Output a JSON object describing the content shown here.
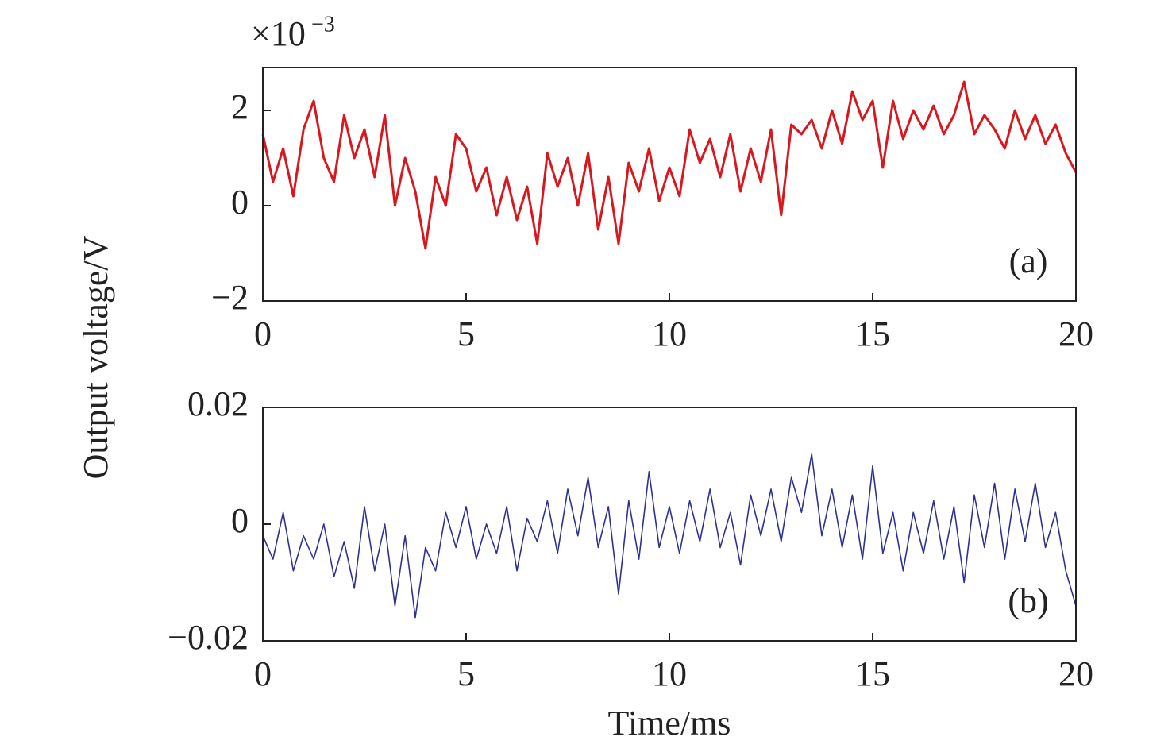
{
  "ylabel": "Output voltage/V",
  "chart_data": [
    {
      "type": "line",
      "panel_label": "(a)",
      "y_multiplier": {
        "base": "×10",
        "exponent": "−3"
      },
      "color": "#d7191f",
      "xlim": [
        0,
        20
      ],
      "xticks": [
        0,
        5,
        10,
        15,
        20
      ],
      "ylim": [
        -2,
        2.9
      ],
      "yticks": [
        {
          "value": -2,
          "label": "−2"
        },
        0,
        2
      ],
      "x": [
        0,
        0.25,
        0.5,
        0.75,
        1,
        1.25,
        1.5,
        1.75,
        2,
        2.25,
        2.5,
        2.75,
        3,
        3.25,
        3.5,
        3.75,
        4,
        4.25,
        4.5,
        4.75,
        5,
        5.25,
        5.5,
        5.75,
        6,
        6.25,
        6.5,
        6.75,
        7,
        7.25,
        7.5,
        7.75,
        8,
        8.25,
        8.5,
        8.75,
        9,
        9.25,
        9.5,
        9.75,
        10,
        10.25,
        10.5,
        10.75,
        11,
        11.25,
        11.5,
        11.75,
        12,
        12.25,
        12.5,
        12.75,
        13,
        13.25,
        13.5,
        13.75,
        14,
        14.25,
        14.5,
        14.75,
        15,
        15.25,
        15.5,
        15.75,
        16,
        16.25,
        16.5,
        16.75,
        17,
        17.25,
        17.5,
        17.75,
        18,
        18.25,
        18.5,
        18.75,
        19,
        19.25,
        19.5,
        19.75,
        20
      ],
      "values": [
        1.5,
        0.5,
        1.2,
        0.2,
        1.6,
        2.2,
        1.0,
        0.5,
        1.9,
        1.0,
        1.6,
        0.6,
        1.9,
        0.0,
        1.0,
        0.3,
        -0.9,
        0.6,
        0.0,
        1.5,
        1.2,
        0.3,
        0.8,
        -0.2,
        0.6,
        -0.3,
        0.4,
        -0.8,
        1.1,
        0.4,
        1.0,
        0.0,
        1.1,
        -0.5,
        0.6,
        -0.8,
        0.9,
        0.3,
        1.2,
        0.1,
        0.8,
        0.2,
        1.6,
        0.9,
        1.4,
        0.6,
        1.5,
        0.3,
        1.2,
        0.5,
        1.6,
        -0.2,
        1.7,
        1.5,
        1.8,
        1.2,
        2.0,
        1.3,
        2.4,
        1.8,
        2.2,
        0.8,
        2.2,
        1.4,
        2.0,
        1.6,
        2.1,
        1.5,
        1.9,
        2.6,
        1.5,
        1.9,
        1.6,
        1.2,
        2.0,
        1.4,
        1.9,
        1.3,
        1.7,
        1.1,
        0.7
      ]
    },
    {
      "type": "line",
      "panel_label": "(b)",
      "xlabel": "Time/ms",
      "color": "#2e3192",
      "xlim": [
        0,
        20
      ],
      "xticks": [
        0,
        5,
        10,
        15,
        20
      ],
      "ylim": [
        -0.02,
        0.02
      ],
      "yticks": [
        {
          "value": -0.02,
          "label": "−0.02"
        },
        0,
        0.02
      ],
      "x": [
        0,
        0.25,
        0.5,
        0.75,
        1,
        1.25,
        1.5,
        1.75,
        2,
        2.25,
        2.5,
        2.75,
        3,
        3.25,
        3.5,
        3.75,
        4,
        4.25,
        4.5,
        4.75,
        5,
        5.25,
        5.5,
        5.75,
        6,
        6.25,
        6.5,
        6.75,
        7,
        7.25,
        7.5,
        7.75,
        8,
        8.25,
        8.5,
        8.75,
        9,
        9.25,
        9.5,
        9.75,
        10,
        10.25,
        10.5,
        10.75,
        11,
        11.25,
        11.5,
        11.75,
        12,
        12.25,
        12.5,
        12.75,
        13,
        13.25,
        13.5,
        13.75,
        14,
        14.25,
        14.5,
        14.75,
        15,
        15.25,
        15.5,
        15.75,
        16,
        16.25,
        16.5,
        16.75,
        17,
        17.25,
        17.5,
        17.75,
        18,
        18.25,
        18.5,
        18.75,
        19,
        19.25,
        19.5,
        19.75,
        20
      ],
      "values": [
        -0.002,
        -0.006,
        0.002,
        -0.008,
        -0.002,
        -0.006,
        0.0,
        -0.009,
        -0.003,
        -0.011,
        0.003,
        -0.008,
        0.0,
        -0.014,
        -0.002,
        -0.016,
        -0.004,
        -0.008,
        0.002,
        -0.004,
        0.003,
        -0.006,
        0.0,
        -0.005,
        0.003,
        -0.008,
        0.001,
        -0.003,
        0.004,
        -0.005,
        0.006,
        -0.002,
        0.008,
        -0.004,
        0.003,
        -0.012,
        0.004,
        -0.006,
        0.009,
        -0.004,
        0.003,
        -0.005,
        0.004,
        -0.003,
        0.006,
        -0.004,
        0.002,
        -0.007,
        0.005,
        -0.002,
        0.006,
        -0.003,
        0.008,
        0.002,
        0.012,
        -0.002,
        0.006,
        -0.004,
        0.005,
        -0.006,
        0.01,
        -0.005,
        0.002,
        -0.008,
        0.002,
        -0.005,
        0.004,
        -0.006,
        0.003,
        -0.01,
        0.005,
        -0.004,
        0.007,
        -0.006,
        0.006,
        -0.003,
        0.007,
        -0.004,
        0.002,
        -0.008,
        -0.014
      ]
    }
  ]
}
